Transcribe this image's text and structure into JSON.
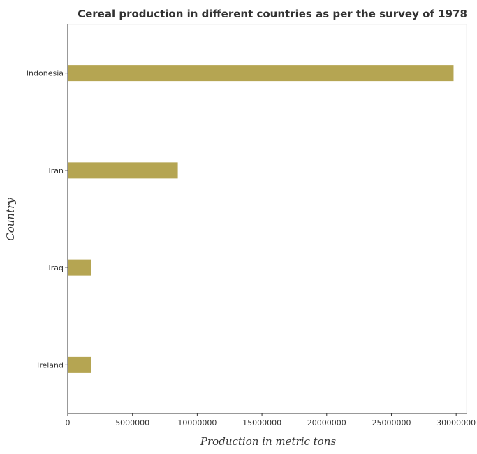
{
  "chart_data": {
    "type": "bar",
    "orientation": "horizontal",
    "title": "Cereal production in different countries as per the survey of 1978",
    "xlabel": "Production in metric tons",
    "ylabel": "Country",
    "categories": [
      "Indonesia",
      "Iran",
      "Iraq",
      "Ireland"
    ],
    "values": [
      29800000,
      8500000,
      1800000,
      1780000
    ],
    "xlim": [
      0,
      30800000
    ],
    "xticks": [
      0,
      5000000,
      10000000,
      15000000,
      20000000,
      25000000,
      30000000
    ],
    "xtick_labels": [
      "0",
      "5000000",
      "10000000",
      "15000000",
      "20000000",
      "25000000",
      "30000000"
    ],
    "grid": false,
    "bar_color": "#b5a552"
  }
}
